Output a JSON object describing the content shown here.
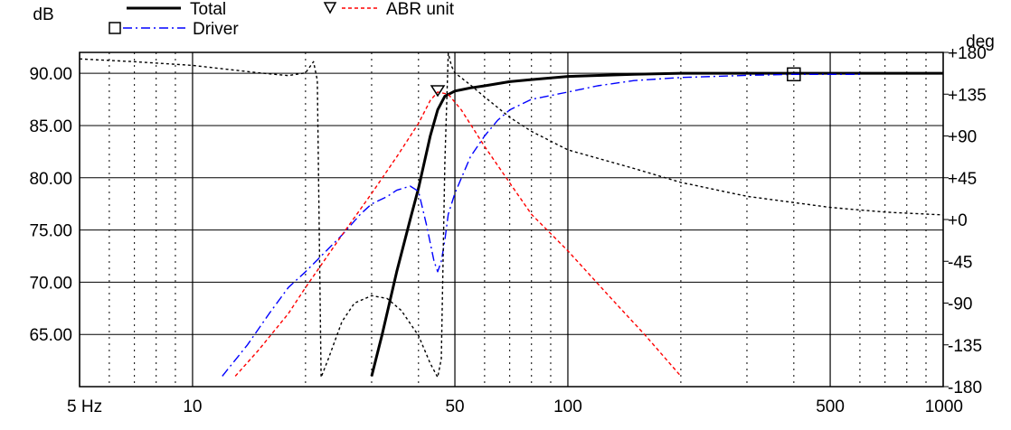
{
  "chart_data": {
    "type": "line",
    "x_scale": "log",
    "xlim": [
      5,
      1000
    ],
    "y_left": {
      "unit": "dB",
      "lim": [
        60,
        92
      ],
      "ticks": [
        "90.00",
        "85.00",
        "80.00",
        "75.00",
        "70.00",
        "65.00"
      ],
      "tick_values": [
        90,
        85,
        80,
        75,
        70,
        65
      ]
    },
    "y_right": {
      "unit": "deg",
      "lim": [
        -180,
        180
      ],
      "ticks": [
        "+180",
        "+135",
        "+90",
        "+45",
        "+0",
        "-45",
        "-90",
        "-135",
        "-180"
      ],
      "tick_values": [
        180,
        135,
        90,
        45,
        0,
        -45,
        -90,
        -135,
        -180
      ]
    },
    "x_ticks": [
      {
        "label": "5 Hz",
        "value": 5
      },
      {
        "label": "10",
        "value": 10
      },
      {
        "label": "50",
        "value": 50
      },
      {
        "label": "100",
        "value": 100
      },
      {
        "label": "500",
        "value": 500
      },
      {
        "label": "1000",
        "value": 1000
      }
    ],
    "grid": true,
    "legend": [
      {
        "name": "Total",
        "color": "#000000",
        "style": "solid",
        "marker": ""
      },
      {
        "name": "Driver",
        "color": "#0000ff",
        "style": "dashdot",
        "marker": "square"
      },
      {
        "name": "ABR unit",
        "color": "#ff0000",
        "style": "dashed",
        "marker": "triangle-down"
      }
    ],
    "series": [
      {
        "name": "Total",
        "axis": "left",
        "color": "#000000",
        "style": "solid",
        "x": [
          30,
          32,
          35,
          38,
          40,
          43,
          45,
          47,
          50,
          55,
          60,
          70,
          80,
          100,
          150,
          200,
          300,
          500,
          700,
          1000
        ],
        "y": [
          61,
          65,
          71,
          76,
          79,
          84,
          86.5,
          87.8,
          88.3,
          88.6,
          88.8,
          89.2,
          89.4,
          89.7,
          89.9,
          90.0,
          90.0,
          90.0,
          90.0,
          90.0
        ]
      },
      {
        "name": "Driver",
        "axis": "left",
        "color": "#0000ff",
        "style": "dashdot",
        "x": [
          12,
          14,
          16,
          18,
          20,
          22,
          25,
          28,
          30,
          33,
          35,
          38,
          40,
          42,
          44,
          45,
          46,
          47,
          48,
          50,
          55,
          60,
          65,
          70,
          80,
          100,
          120,
          150,
          200,
          300,
          400,
          600
        ],
        "y": [
          61,
          64,
          67,
          69.5,
          71,
          72.5,
          74.5,
          76.5,
          77.5,
          78.2,
          78.8,
          79.2,
          78.7,
          75.5,
          72,
          71,
          72,
          74,
          76.5,
          78.5,
          82,
          84,
          85.5,
          86.5,
          87.5,
          88.2,
          88.8,
          89.3,
          89.6,
          89.8,
          89.9,
          89.9
        ],
        "marker_x": 400
      },
      {
        "name": "ABR unit",
        "axis": "left",
        "color": "#ff0000",
        "style": "dashed",
        "x": [
          13,
          15,
          18,
          20,
          25,
          30,
          35,
          40,
          43,
          45,
          48,
          52,
          60,
          70,
          80,
          100,
          130,
          160,
          200
        ],
        "y": [
          61,
          63.5,
          67,
          69.5,
          74.5,
          78.5,
          82,
          85.2,
          87.4,
          88.2,
          88,
          86.5,
          83,
          79.5,
          76.5,
          73,
          68.5,
          65,
          61
        ],
        "marker_x": 45
      },
      {
        "name": "",
        "axis": "right",
        "color": "#000000",
        "style": "dotted",
        "x": [
          5,
          7,
          10,
          15,
          18,
          20,
          21,
          21.5,
          22,
          23,
          25,
          27,
          30,
          33,
          36,
          40,
          43,
          45,
          46,
          47,
          48,
          49,
          50,
          55,
          60,
          70,
          80,
          100,
          150,
          200,
          300,
          500,
          700,
          1000
        ],
        "y": [
          173,
          170,
          166,
          158,
          155,
          158,
          170,
          150,
          -170,
          -150,
          -110,
          -90,
          -82,
          -85,
          -98,
          -125,
          -155,
          -170,
          -150,
          60,
          179,
          165,
          158,
          145,
          132,
          110,
          95,
          75,
          55,
          40,
          25,
          13,
          8,
          5
        ]
      }
    ]
  }
}
